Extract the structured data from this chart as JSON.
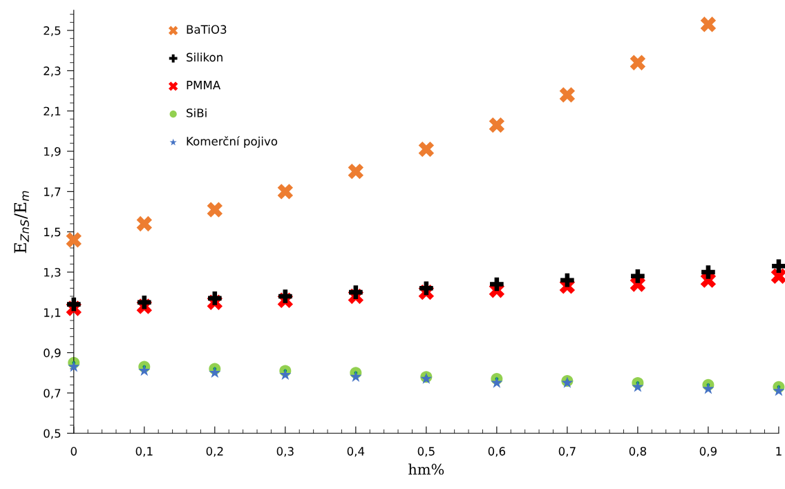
{
  "chart_data": {
    "type": "scatter",
    "xlabel": "hm%",
    "ylabel": "E$_{ZnS}$/E$_{m}$",
    "x": [
      0,
      0.1,
      0.2,
      0.3,
      0.4,
      0.5,
      0.6,
      0.7,
      0.8,
      0.9,
      1
    ],
    "series": [
      {
        "name": "BaTiO3",
        "color": "#ed7d31",
        "marker": "cross",
        "values": [
          1.46,
          1.54,
          1.61,
          1.7,
          1.8,
          1.91,
          2.03,
          2.18,
          2.34,
          2.53,
          null
        ]
      },
      {
        "name": "Silikon",
        "color": "#000000",
        "values": [
          1.14,
          1.15,
          1.17,
          1.18,
          1.2,
          1.22,
          1.24,
          1.26,
          1.28,
          1.3,
          1.33
        ]
      },
      {
        "name": "PMMA",
        "color": "#ff0000",
        "marker": "cross",
        "values": [
          1.12,
          1.13,
          1.15,
          1.16,
          1.18,
          1.2,
          1.21,
          1.23,
          1.24,
          1.26,
          1.28
        ]
      },
      {
        "name": "SiBi",
        "color": "#92d050",
        "marker": "circle",
        "values": [
          0.85,
          0.83,
          0.82,
          0.81,
          0.8,
          0.78,
          0.77,
          0.76,
          0.75,
          0.74,
          0.73
        ]
      },
      {
        "name": "Komerční pojivo",
        "color": "#4472c4",
        "marker": "star",
        "values": [
          0.83,
          0.81,
          0.8,
          0.79,
          0.78,
          0.77,
          0.75,
          0.75,
          0.73,
          0.72,
          0.71
        ]
      }
    ],
    "xlim": [
      0,
      1
    ],
    "xticks": [
      0,
      {
        "value": 0.1,
        "label": "0,1"
      },
      {
        "value": 0.2,
        "label": "0,2"
      },
      {
        "value": 0.3,
        "label": "0,3"
      },
      {
        "value": 0.4,
        "label": "0,4"
      },
      {
        "value": 0.5,
        "label": "0,5"
      },
      {
        "value": 0.6,
        "label": "0,6"
      },
      {
        "value": 0.7,
        "label": "0,7"
      },
      {
        "value": 0.8,
        "label": "0,8"
      },
      {
        "value": 0.9,
        "label": "0,9"
      },
      1
    ],
    "ylim": [
      0.5,
      2.6
    ],
    "yticks": [
      {
        "value": 0.5,
        "label": "0,5"
      },
      {
        "value": 0.7,
        "label": "0,7"
      },
      {
        "value": 0.9,
        "label": "0,9"
      },
      {
        "value": 1.1,
        "label": "1,1"
      },
      {
        "value": 1.3,
        "label": "1,3"
      },
      {
        "value": 1.5,
        "label": "1,5"
      },
      {
        "value": 1.7,
        "label": "1,7"
      },
      {
        "value": 1.9,
        "label": "1,9"
      },
      {
        "value": 2.1,
        "label": "2,1"
      },
      {
        "value": 2.3,
        "label": "2,3"
      },
      {
        "value": 2.5,
        "label": "2,5"
      }
    ],
    "grid": false,
    "legend": "top left"
  }
}
